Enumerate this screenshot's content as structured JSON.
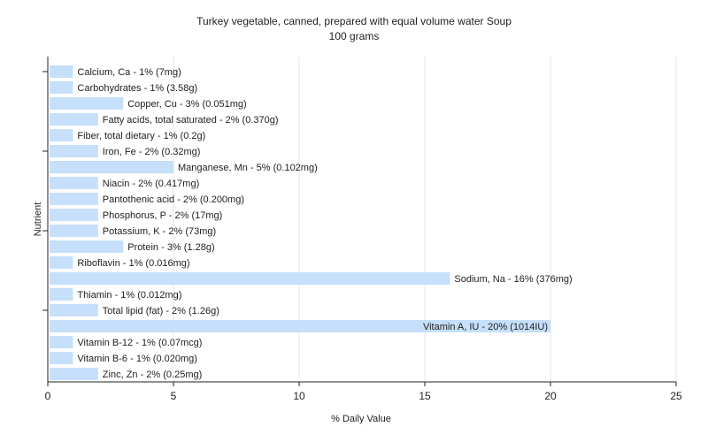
{
  "chart_data": {
    "type": "bar",
    "orientation": "horizontal",
    "title": "Turkey vegetable, canned, prepared with equal volume water Soup",
    "subtitle": "100 grams",
    "xlabel": "% Daily Value",
    "ylabel": "Nutrient",
    "xlim": [
      0,
      25
    ],
    "xticks": [
      0,
      5,
      10,
      15,
      20,
      25
    ],
    "grid": true,
    "bar_color": "#c6dffa",
    "categories": [
      "Calcium, Ca",
      "Carbohydrates",
      "Copper, Cu",
      "Fatty acids, total saturated",
      "Fiber, total dietary",
      "Iron, Fe",
      "Manganese, Mn",
      "Niacin",
      "Pantothenic acid",
      "Phosphorus, P",
      "Potassium, K",
      "Protein",
      "Riboflavin",
      "Sodium, Na",
      "Thiamin",
      "Total lipid (fat)",
      "Vitamin A, IU",
      "Vitamin B-12",
      "Vitamin B-6",
      "Zinc, Zn"
    ],
    "values": [
      1,
      1,
      3,
      2,
      1,
      2,
      5,
      2,
      2,
      2,
      2,
      3,
      1,
      16,
      1,
      2,
      20,
      1,
      1,
      2
    ],
    "labels": [
      "Calcium, Ca - 1% (7mg)",
      "Carbohydrates - 1% (3.58g)",
      "Copper, Cu - 3% (0.051mg)",
      "Fatty acids, total saturated - 2% (0.370g)",
      "Fiber, total dietary - 1% (0.2g)",
      "Iron, Fe - 2% (0.32mg)",
      "Manganese, Mn - 5% (0.102mg)",
      "Niacin - 2% (0.417mg)",
      "Pantothenic acid - 2% (0.200mg)",
      "Phosphorus, P - 2% (17mg)",
      "Potassium, K - 2% (73mg)",
      "Protein - 3% (1.28g)",
      "Riboflavin - 1% (0.016mg)",
      "Sodium, Na - 16% (376mg)",
      "Thiamin - 1% (0.012mg)",
      "Total lipid (fat) - 2% (1.26g)",
      "Vitamin A, IU - 20% (1014IU)",
      "Vitamin B-12 - 1% (0.07mcg)",
      "Vitamin B-6 - 1% (0.020mg)",
      "Zinc, Zn - 2% (0.25mg)"
    ]
  }
}
